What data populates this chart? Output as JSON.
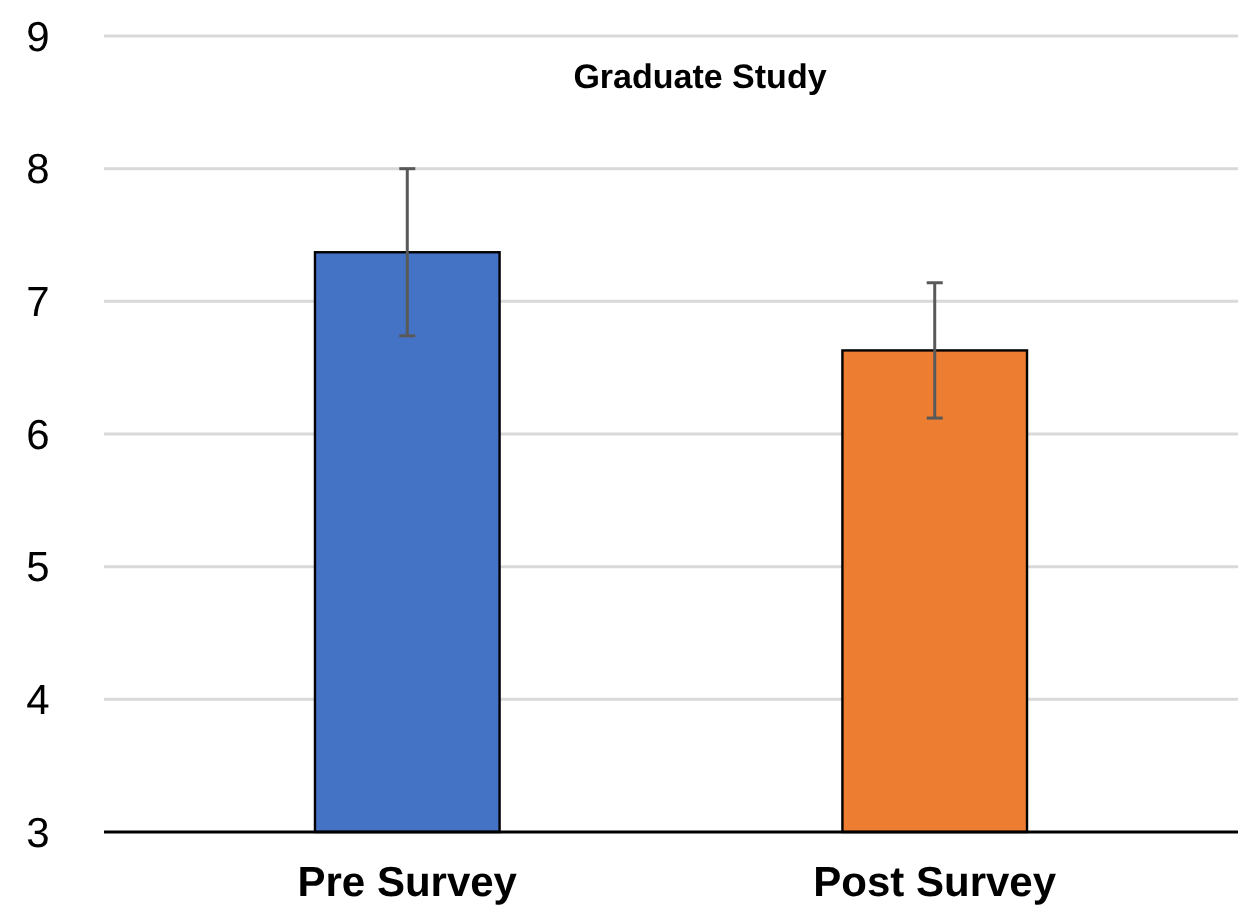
{
  "chart_data": {
    "type": "bar",
    "title": "Graduate Study",
    "categories": [
      "Pre Survey",
      "Post Survey"
    ],
    "values": [
      7.37,
      6.63
    ],
    "colors": [
      "#4472c4",
      "#ed7d31"
    ],
    "errors": [
      0.63,
      0.51
    ],
    "ylim": [
      3,
      9
    ],
    "yticks": [
      3,
      4,
      5,
      6,
      7,
      8,
      9
    ],
    "grid": "y"
  }
}
